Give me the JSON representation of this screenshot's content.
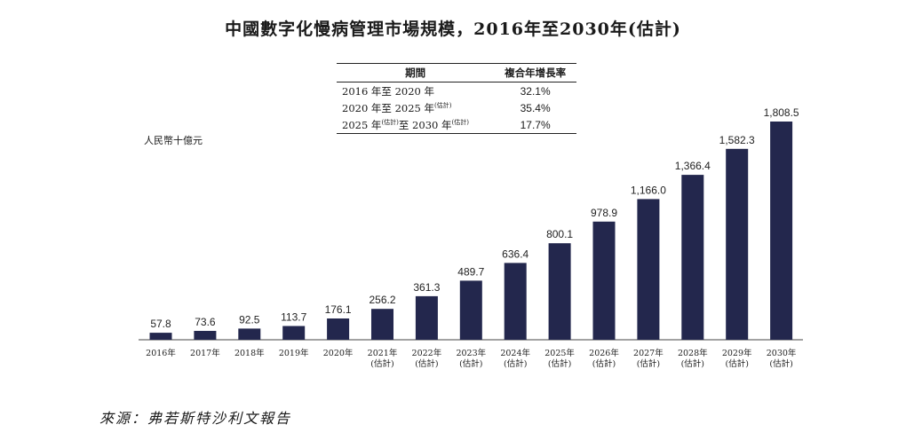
{
  "title": "中國數字化慢病管理市場規模，2016年至2030年(估計)",
  "cagr_table": {
    "header_period": "期間",
    "header_rate": "複合年增長率",
    "rows": [
      {
        "period_start": "2016 年至 2020 年",
        "est_a": "",
        "period_mid": "",
        "est_b": "",
        "rate": "32.1%"
      },
      {
        "period_start": "2020 年至 2025 年",
        "est_a": "(估計)",
        "period_mid": "",
        "est_b": "",
        "rate": "35.4%"
      },
      {
        "period_start": "2025 年",
        "est_a": "(估計)",
        "period_mid": "至 2030 年",
        "est_b": "(估計)",
        "rate": "17.7%"
      }
    ]
  },
  "unit_label": "人民幣十億元",
  "source": "來源：弗若斯特沙利文報告",
  "colors": {
    "bar": "#23274d",
    "axis": "#444444"
  },
  "chart_data": {
    "type": "bar",
    "title": "中國數字化慢病管理市場規模，2016年至2030年(估計)",
    "ylabel": "人民幣十億元",
    "ylim": [
      0,
      1808.5
    ],
    "grid": false,
    "legend": "none",
    "categories": [
      {
        "year": "2016年",
        "note": ""
      },
      {
        "year": "2017年",
        "note": ""
      },
      {
        "year": "2018年",
        "note": ""
      },
      {
        "year": "2019年",
        "note": ""
      },
      {
        "year": "2020年",
        "note": ""
      },
      {
        "year": "2021年",
        "note": "(估計)"
      },
      {
        "year": "2022年",
        "note": "(估計)"
      },
      {
        "year": "2023年",
        "note": "(估計)"
      },
      {
        "year": "2024年",
        "note": "(估計)"
      },
      {
        "year": "2025年",
        "note": "(估計)"
      },
      {
        "year": "2026年",
        "note": "(估計)"
      },
      {
        "year": "2027年",
        "note": "(估計)"
      },
      {
        "year": "2028年",
        "note": "(估計)"
      },
      {
        "year": "2029年",
        "note": "(估計)"
      },
      {
        "year": "2030年",
        "note": "(估計)"
      }
    ],
    "values": [
      57.8,
      73.6,
      92.5,
      113.7,
      176.1,
      256.2,
      361.3,
      489.7,
      636.4,
      800.1,
      978.9,
      1166.0,
      1366.4,
      1582.3,
      1808.5
    ],
    "value_labels": [
      "57.8",
      "73.6",
      "92.5",
      "113.7",
      "176.1",
      "256.2",
      "361.3",
      "489.7",
      "636.4",
      "800.1",
      "978.9",
      "1,166.0",
      "1,366.4",
      "1,582.3",
      "1,808.5"
    ]
  }
}
